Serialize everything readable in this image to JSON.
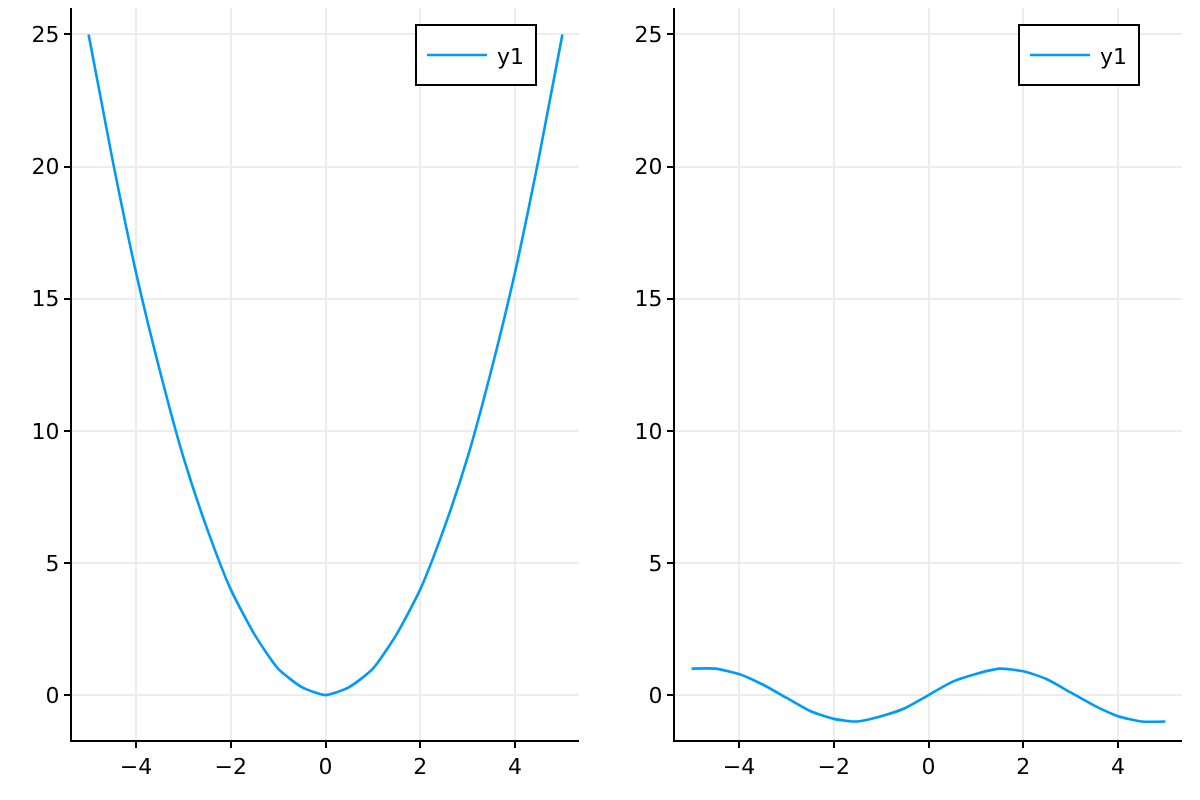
{
  "chart_data": [
    {
      "type": "line",
      "x": [
        -5,
        -4.5,
        -4,
        -3.5,
        -3,
        -2.5,
        -2,
        -1.5,
        -1,
        -0.5,
        0,
        0.5,
        1,
        1.5,
        2,
        2.5,
        3,
        3.5,
        4,
        4.5,
        5
      ],
      "series": [
        {
          "name": "y1",
          "color": "#009af9",
          "values": [
            25,
            20.3,
            16,
            12.3,
            9,
            6.3,
            4,
            2.3,
            1,
            0.3,
            0,
            0.3,
            1,
            2.3,
            4,
            6.3,
            9,
            12.3,
            16,
            20.3,
            25
          ]
        }
      ],
      "xlim": [
        -5.35,
        5.35
      ],
      "xticks": [
        -4,
        -2,
        0,
        2,
        4
      ],
      "ylim": [
        -1.7,
        26
      ],
      "yticks": [
        0,
        5,
        10,
        15,
        20,
        25
      ],
      "grid": true,
      "legend": "top right"
    },
    {
      "type": "line",
      "x": [
        -5,
        -4.5,
        -4,
        -3.5,
        -3,
        -2.5,
        -2,
        -1.5,
        -1,
        -0.5,
        0,
        0.5,
        1,
        1.5,
        2,
        2.5,
        3,
        3.5,
        4,
        4.5,
        5
      ],
      "series": [
        {
          "name": "y1",
          "color": "#009af9",
          "values": [
            1.0,
            1.0,
            0.8,
            0.4,
            -0.1,
            -0.6,
            -0.9,
            -1.0,
            -0.8,
            -0.5,
            0,
            0.5,
            0.8,
            1.0,
            0.9,
            0.6,
            0.1,
            -0.4,
            -0.8,
            -1.0,
            -1.0
          ]
        }
      ],
      "xlim": [
        -5.35,
        5.35
      ],
      "xticks": [
        -4,
        -2,
        0,
        2,
        4
      ],
      "ylim": [
        -1.7,
        26
      ],
      "yticks": [
        0,
        5,
        10,
        15,
        20,
        25
      ],
      "grid": true,
      "legend": "top right"
    }
  ]
}
